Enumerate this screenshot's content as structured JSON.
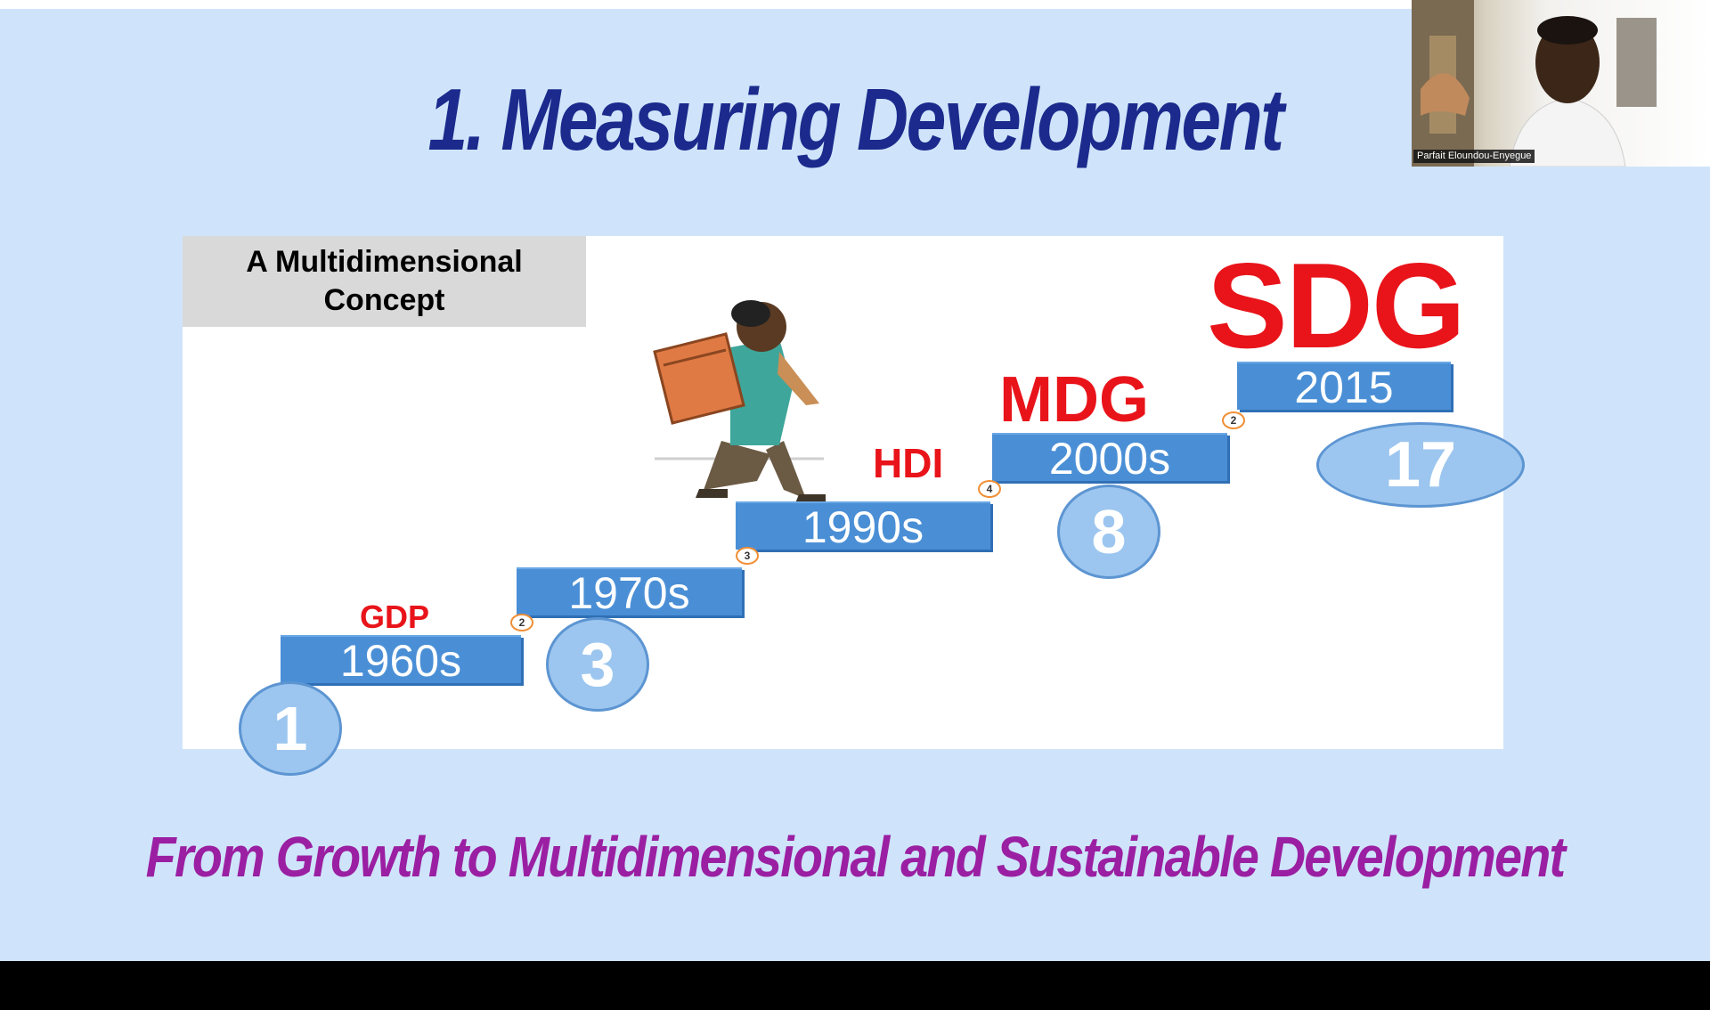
{
  "slide": {
    "title": "1. Measuring Development",
    "concept_box": "A Multidimensional Concept",
    "subtitle": "From Growth to Multidimensional and Sustainable Development",
    "steps": [
      {
        "period": "1960s",
        "label": "GDP",
        "count": "1",
        "marker": "2"
      },
      {
        "period": "1970s",
        "label": "",
        "count": "3",
        "marker": "3"
      },
      {
        "period": "1990s",
        "label": "HDI",
        "count": "",
        "marker": "4"
      },
      {
        "period": "2000s",
        "label": "MDG",
        "count": "8",
        "marker": "2"
      },
      {
        "period": "2015",
        "label": "SDG",
        "count": "17",
        "marker": ""
      }
    ]
  },
  "webcam": {
    "participant_name": "Parfait Eloundou-Enyegue"
  },
  "colors": {
    "slide_background": "#cfe4fb",
    "title": "#1b2a8c",
    "subtitle": "#9b1fa2",
    "step_fill": "#4a8fd6",
    "label_red": "#e8141a"
  }
}
